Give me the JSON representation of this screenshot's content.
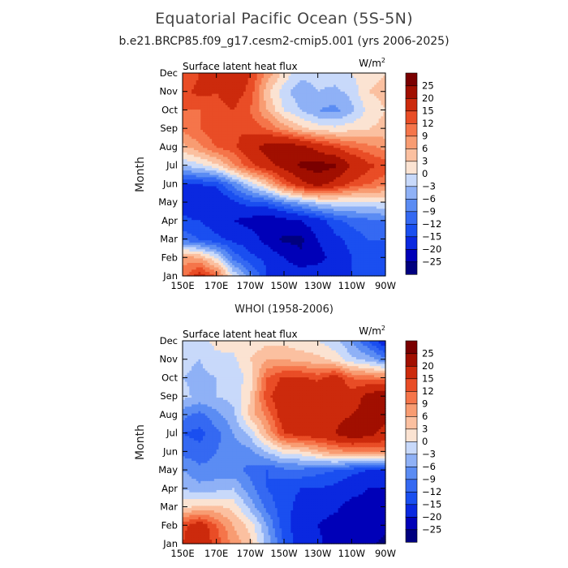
{
  "figure": {
    "title": "Equatorial Pacific Ocean (5S-5N)",
    "subtitle": "b.e21.BRCP85.f09_g17.cesm2-cmip5.001 (yrs 2006-2025)"
  },
  "chart_data": [
    {
      "type": "heatmap",
      "panel_title": "",
      "variable": "Surface latent heat flux",
      "units_label": "W/m",
      "units_exp": "2",
      "ylabel": "Month",
      "xlabel": "",
      "x_ticks": [
        "150E",
        "170E",
        "170W",
        "150W",
        "130W",
        "110W",
        "90W"
      ],
      "y_ticks": [
        "Jan",
        "Feb",
        "Mar",
        "Apr",
        "May",
        "Jun",
        "Jul",
        "Aug",
        "Sep",
        "Oct",
        "Nov",
        "Dec"
      ],
      "x": [
        150,
        160,
        170,
        180,
        190,
        200,
        210,
        220,
        230,
        240,
        250,
        260,
        270
      ],
      "y": [
        1,
        2,
        3,
        4,
        5,
        6,
        7,
        8,
        9,
        10,
        11,
        12
      ],
      "z": [
        [
          10,
          18,
          12,
          0,
          -8,
          -15,
          -15,
          -16,
          -16,
          -16,
          -15,
          -13,
          -12
        ],
        [
          8,
          6,
          0,
          -10,
          -14,
          -16,
          -20,
          -24,
          -22,
          -18,
          -15,
          -14,
          -12
        ],
        [
          -10,
          -12,
          -14,
          -16,
          -17,
          -22,
          -26,
          -26,
          -20,
          -16,
          -14,
          -12,
          -12
        ],
        [
          -14,
          -15,
          -17,
          -20,
          -22,
          -24,
          -22,
          -20,
          -17,
          -13,
          -11,
          -10,
          -9
        ],
        [
          -17,
          -19,
          -20,
          -16,
          -13,
          -12,
          -8,
          -5,
          -2,
          -1,
          -1,
          -1,
          0
        ],
        [
          -15,
          -15,
          -14,
          -8,
          -2,
          4,
          12,
          18,
          22,
          18,
          14,
          12,
          10
        ],
        [
          -3,
          -1,
          2,
          8,
          14,
          18,
          22,
          26,
          27,
          26,
          20,
          16,
          14
        ],
        [
          5,
          8,
          12,
          14,
          18,
          22,
          24,
          22,
          18,
          15,
          12,
          10,
          8
        ],
        [
          10,
          12,
          15,
          15,
          14,
          12,
          8,
          4,
          2,
          1,
          2,
          3,
          4
        ],
        [
          12,
          12,
          14,
          15,
          12,
          6,
          0,
          -3,
          -6,
          -7,
          -4,
          1,
          3
        ],
        [
          14,
          16,
          15,
          17,
          14,
          4,
          -2,
          -5,
          -3,
          -4,
          -2,
          3,
          4
        ],
        [
          12,
          15,
          16,
          18,
          15,
          8,
          2,
          -2,
          -2,
          -1,
          0,
          2,
          3
        ]
      ],
      "levels": [
        -25,
        -20,
        -15,
        -12,
        -9,
        -6,
        -3,
        0,
        3,
        6,
        9,
        12,
        15,
        20,
        25
      ],
      "colors": [
        "#00007f",
        "#0000b8",
        "#0a28e0",
        "#1a4ff0",
        "#3569f2",
        "#5b8cf3",
        "#8fb1f6",
        "#c8d9fa",
        "#fbe3d2",
        "#fbc0a0",
        "#f89c72",
        "#f5754a",
        "#e94d26",
        "#cc2a0c",
        "#a10f00",
        "#7a0000"
      ]
    },
    {
      "type": "heatmap",
      "panel_title": "WHOI (1958-2006)",
      "variable": "Surface latent heat flux",
      "units_label": "W/m",
      "units_exp": "2",
      "ylabel": "Month",
      "xlabel": "",
      "x_ticks": [
        "150E",
        "170E",
        "170W",
        "150W",
        "130W",
        "110W",
        "90W"
      ],
      "y_ticks": [
        "Jan",
        "Feb",
        "Mar",
        "Apr",
        "May",
        "Jun",
        "Jul",
        "Aug",
        "Sep",
        "Oct",
        "Nov",
        "Dec"
      ],
      "x": [
        150,
        160,
        170,
        180,
        190,
        200,
        210,
        220,
        230,
        240,
        250,
        260,
        270
      ],
      "y": [
        1,
        2,
        3,
        4,
        5,
        6,
        7,
        8,
        9,
        10,
        11,
        12
      ],
      "z": [
        [
          15,
          18,
          14,
          8,
          4,
          -4,
          -12,
          -17,
          -19,
          -22,
          -22,
          -24,
          -26
        ],
        [
          14,
          18,
          12,
          6,
          2,
          -6,
          -14,
          -17,
          -20,
          -22,
          -22,
          -24,
          -24
        ],
        [
          2,
          4,
          4,
          2,
          -4,
          -10,
          -14,
          -16,
          -18,
          -19,
          -22,
          -22,
          -22
        ],
        [
          -3,
          -5,
          -4,
          -3,
          -8,
          -12,
          -14,
          -15,
          -15,
          -16,
          -18,
          -20,
          -20
        ],
        [
          -6,
          -8,
          -8,
          -8,
          -10,
          -12,
          -10,
          -10,
          -11,
          -12,
          -14,
          -15,
          -17
        ],
        [
          -10,
          -11,
          -9,
          -8,
          -7,
          -3,
          1,
          2,
          5,
          8,
          8,
          9,
          10
        ],
        [
          -12,
          -13,
          -10,
          -6,
          -2,
          6,
          15,
          17,
          18,
          20,
          24,
          22,
          18
        ],
        [
          -8,
          -10,
          -7,
          -4,
          4,
          10,
          18,
          20,
          20,
          18,
          20,
          22,
          22
        ],
        [
          -2,
          -4,
          -3,
          -2,
          3,
          14,
          18,
          16,
          20,
          18,
          17,
          22,
          25
        ],
        [
          -3,
          -4,
          -3,
          -2,
          1,
          12,
          16,
          16,
          14,
          18,
          12,
          11,
          10
        ],
        [
          -2,
          -3,
          -1,
          -1,
          3,
          6,
          6,
          5,
          4,
          2,
          -2,
          -4,
          -8
        ],
        [
          0,
          -1,
          1,
          2,
          1,
          2,
          2,
          1,
          0,
          -2,
          -6,
          -12,
          -18
        ]
      ],
      "levels": [
        -25,
        -20,
        -15,
        -12,
        -9,
        -6,
        -3,
        0,
        3,
        6,
        9,
        12,
        15,
        20,
        25
      ],
      "colors": [
        "#00007f",
        "#0000b8",
        "#0a28e0",
        "#1a4ff0",
        "#3569f2",
        "#5b8cf3",
        "#8fb1f6",
        "#c8d9fa",
        "#fbe3d2",
        "#fbc0a0",
        "#f89c72",
        "#f5754a",
        "#e94d26",
        "#cc2a0c",
        "#a10f00",
        "#7a0000"
      ]
    }
  ]
}
